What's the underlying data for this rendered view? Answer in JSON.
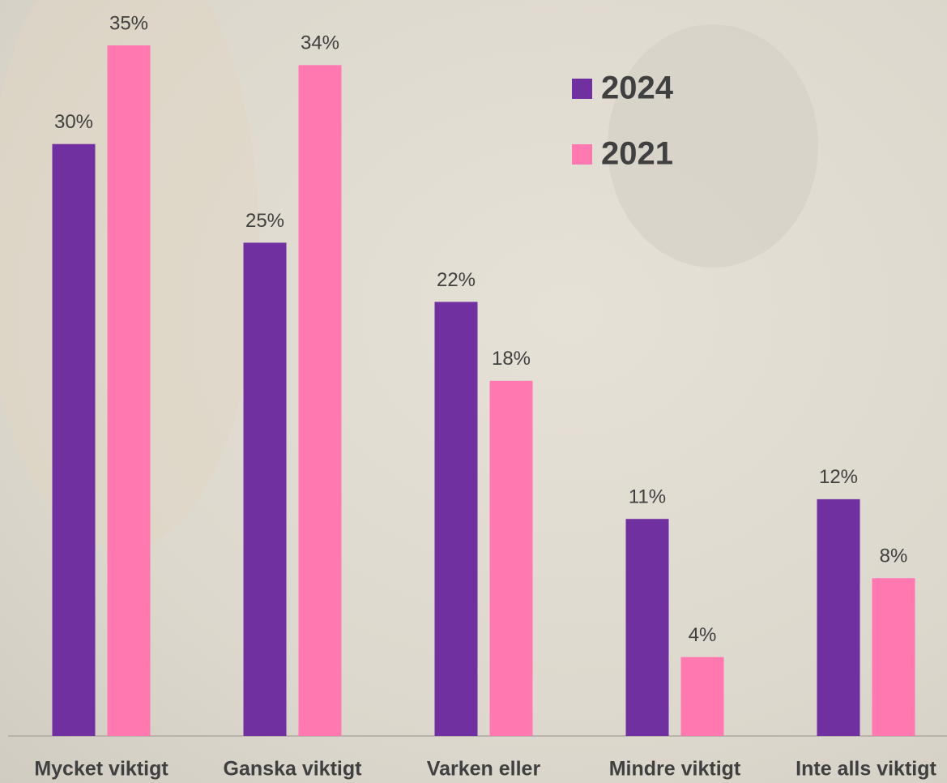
{
  "chart_data": {
    "type": "bar",
    "categories": [
      "Mycket viktigt",
      "Ganska viktigt",
      "Varken eller",
      "Mindre viktigt",
      "Inte alls viktigt"
    ],
    "series": [
      {
        "name": "2024",
        "color": "#7030a0",
        "values": [
          30,
          25,
          22,
          11,
          12
        ],
        "value_labels": [
          "30%",
          "25%",
          "22%",
          "11%",
          "12%"
        ]
      },
      {
        "name": "2021",
        "color": "#ff79b0",
        "values": [
          35,
          34,
          18,
          4,
          8
        ],
        "value_labels": [
          "35%",
          "34%",
          "18%",
          "4%",
          "8%"
        ]
      }
    ],
    "legend": "top-right"
  }
}
